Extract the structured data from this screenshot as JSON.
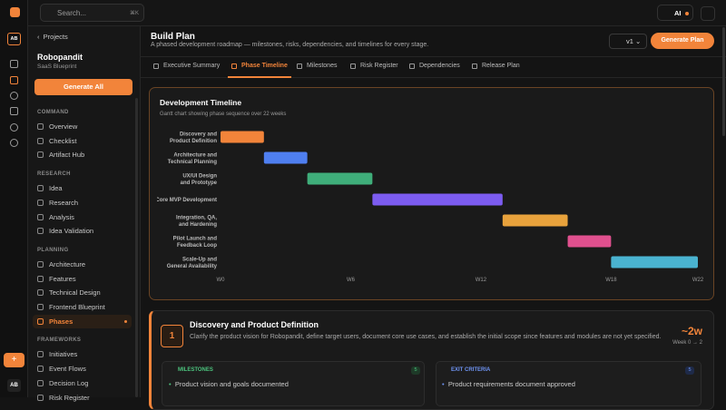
{
  "topbar": {
    "search": "Search...",
    "shortcut": "⌘K",
    "ai": "AI"
  },
  "rail": {
    "avatar": "AB",
    "footer_avatar": "AB"
  },
  "sidebar": {
    "back": "Projects",
    "project": "Robopandit",
    "subtitle": "SaaS Blueprint",
    "button": "Generate All",
    "sections": [
      {
        "title": "COMMAND",
        "items": [
          "Overview",
          "Checklist",
          "Artifact Hub"
        ]
      },
      {
        "title": "RESEARCH",
        "items": [
          "Idea",
          "Research",
          "Analysis",
          "Idea Validation"
        ]
      },
      {
        "title": "PLANNING",
        "items": [
          "Architecture",
          "Features",
          "Technical Design",
          "Frontend Blueprint",
          "Phases"
        ]
      },
      {
        "title": "FRAMEWORKS",
        "items": [
          "Initiatives",
          "Event Flows",
          "Decision Log",
          "Risk Register"
        ]
      }
    ],
    "active": {
      "section": 2,
      "item": 4
    }
  },
  "header": {
    "title": "Build Plan",
    "subtitle": "A phased development roadmap — milestones, risks, dependencies, and timelines for every stage.",
    "version": "v1",
    "button": "Generate Plan"
  },
  "tabs": {
    "items": [
      "Executive Summary",
      "Phase Timeline",
      "Milestones",
      "Risk Register",
      "Dependencies",
      "Release Plan"
    ],
    "active": 1
  },
  "chart_data": {
    "type": "gantt",
    "title": "Development Timeline",
    "subtitle": "Gantt chart showing phase sequence over 22 weeks",
    "tasks": [
      {
        "label": [
          "Discovery and",
          "Product Definition"
        ],
        "start": 0,
        "duration": 2,
        "color": "#f2843a"
      },
      {
        "label": [
          "Architecture and",
          "Technical Planning"
        ],
        "start": 2,
        "duration": 2,
        "color": "#4f7ff0"
      },
      {
        "label": [
          "UX/UI Design",
          "and Prototype"
        ],
        "start": 4,
        "duration": 3,
        "color": "#3fae7a"
      },
      {
        "label": [
          "Core MVP Development"
        ],
        "start": 7,
        "duration": 6,
        "color": "#7c5cf0"
      },
      {
        "label": [
          "Integration, QA,",
          "and Hardening"
        ],
        "start": 13,
        "duration": 3,
        "color": "#e8a23c"
      },
      {
        "label": [
          "Pilot Launch and",
          "Feedback Loop"
        ],
        "start": 16,
        "duration": 2,
        "color": "#e0508e"
      },
      {
        "label": [
          "Scale-Up and",
          "General Availability"
        ],
        "start": 18,
        "duration": 4,
        "color": "#4ab3d0"
      }
    ],
    "xlim": [
      0,
      22
    ],
    "xticks": [
      {
        "value": 0,
        "label": "W0"
      },
      {
        "value": 6,
        "label": "W6"
      },
      {
        "value": 12,
        "label": "W12"
      },
      {
        "value": 18,
        "label": "W18"
      },
      {
        "value": 22,
        "label": "W22"
      }
    ]
  },
  "phase": {
    "number": "1",
    "title": "Discovery and Product Definition",
    "description": "Clarify the product vision for Robopandit, define target users, document core use cases, and establish the initial scope since features and modules are not yet specified.",
    "duration": "~2w",
    "range": "Week 0 → 2",
    "milestones": {
      "title": "MILESTONES",
      "count": "5",
      "items": [
        "Product vision and goals documented"
      ]
    },
    "exit": {
      "title": "EXIT CRITERIA",
      "count": "5",
      "items": [
        "Product requirements document approved"
      ]
    }
  }
}
